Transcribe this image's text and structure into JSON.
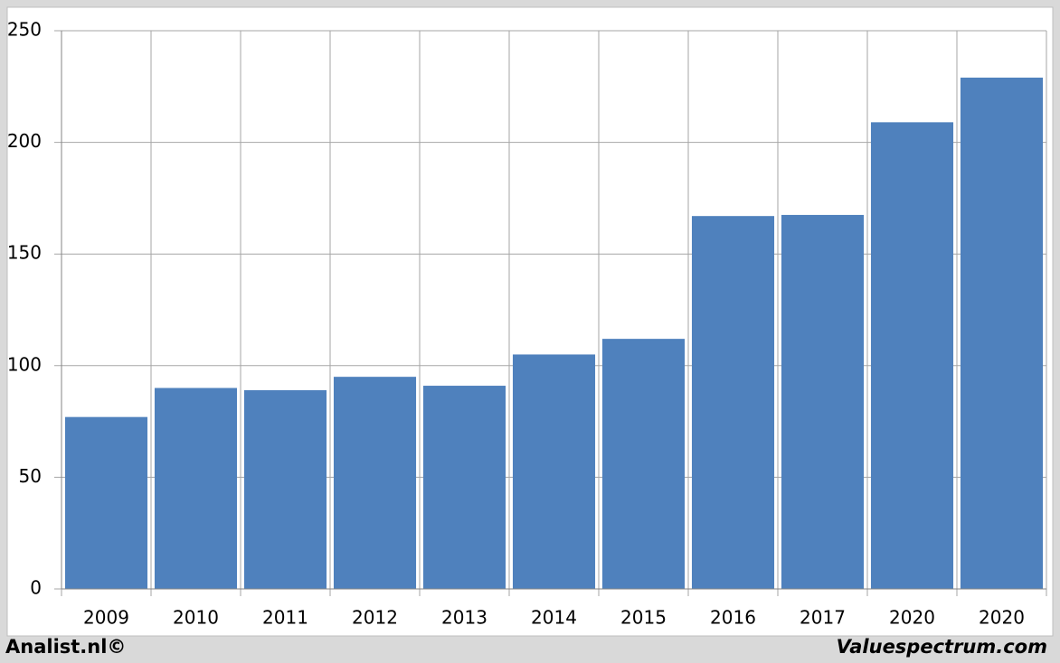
{
  "chart_data": {
    "type": "bar",
    "categories": [
      "2009",
      "2010",
      "2011",
      "2012",
      "2013",
      "2014",
      "2015",
      "2016",
      "2017",
      "2020",
      "2020"
    ],
    "values": [
      77,
      90,
      89,
      95,
      91,
      105,
      112,
      167,
      167.5,
      209,
      229
    ],
    "color": "#4f81bd",
    "ylim": [
      0,
      250
    ],
    "yticks": [
      0,
      50,
      100,
      150,
      200,
      250
    ],
    "grid": true
  },
  "credits": {
    "left": "Analist.nl©",
    "right": "Valuespectrum.com"
  }
}
